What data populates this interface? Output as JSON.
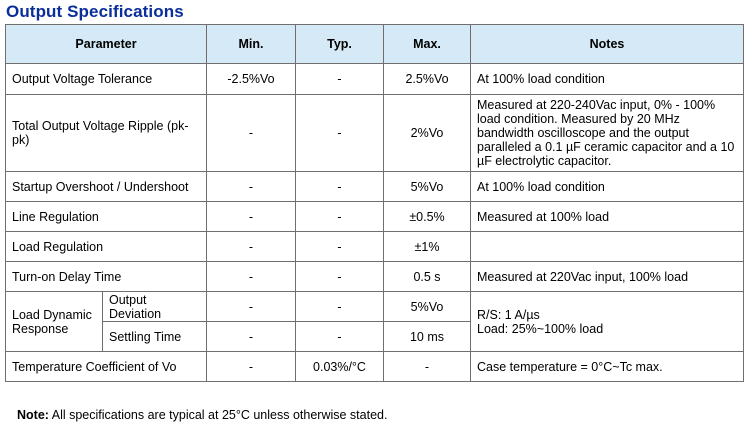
{
  "title": "Output Specifications",
  "headers": {
    "parameter": "Parameter",
    "min": "Min.",
    "typ": "Typ.",
    "max": "Max.",
    "notes": "Notes"
  },
  "rows": [
    {
      "parameter": "Output Voltage Tolerance",
      "min": "-2.5%Vo",
      "typ": "-",
      "max": "2.5%Vo",
      "notes": "At 100% load condition"
    },
    {
      "parameter": "Total Output Voltage Ripple (pk-pk)",
      "min": "-",
      "typ": "-",
      "max": "2%Vo",
      "notes": "Measured at 220-240Vac input, 0% - 100% load condition. Measured by 20 MHz bandwidth oscilloscope and the output paralleled a 0.1 µF ceramic capacitor and a 10 µF electrolytic capacitor."
    },
    {
      "parameter": "Startup Overshoot / Undershoot",
      "min": "-",
      "typ": "-",
      "max": "5%Vo",
      "notes": "At 100% load condition"
    },
    {
      "parameter": "Line Regulation",
      "min": "-",
      "typ": "-",
      "max": "±0.5%",
      "notes": "Measured at 100% load"
    },
    {
      "parameter": "Load Regulation",
      "min": "-",
      "typ": "-",
      "max": "±1%",
      "notes": ""
    },
    {
      "parameter": "Turn-on Delay Time",
      "min": "-",
      "typ": "-",
      "max": "0.5 s",
      "notes": "Measured at 220Vac input, 100% load"
    }
  ],
  "dynamic": {
    "group_label": "Load Dynamic Response",
    "deviation": {
      "label": "Output Deviation",
      "min": "-",
      "typ": "-",
      "max": "5%Vo"
    },
    "settling": {
      "label": "Settling Time",
      "min": "-",
      "typ": "-",
      "max": "10 ms"
    },
    "notes_line1": "R/S: 1 A/µs",
    "notes_line2": "Load: 25%~100% load"
  },
  "tempco": {
    "parameter": "Temperature Coefficient of Vo",
    "min": "-",
    "typ": "0.03%/°C",
    "max": "-",
    "notes": "Case temperature = 0°C~Tc max."
  },
  "footer": {
    "label": "Note:",
    "text": " All specifications are typical at 25°C unless otherwise stated."
  }
}
